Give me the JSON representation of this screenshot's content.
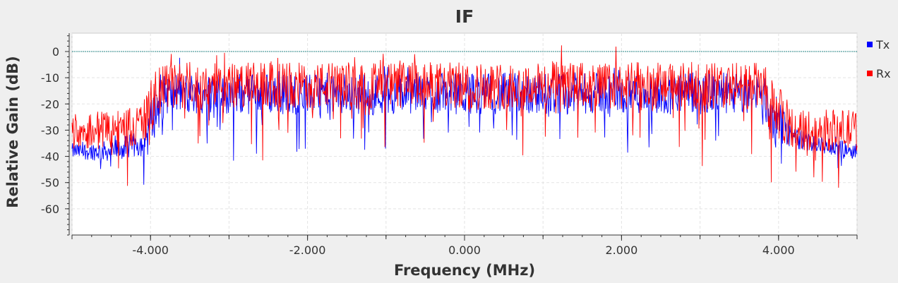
{
  "chart_data": {
    "type": "line",
    "title": "IF",
    "xlabel": "Frequency (MHz)",
    "ylabel": "Relative Gain (dB)",
    "xlim": [
      -5.0,
      5.0
    ],
    "ylim": [
      -70,
      7
    ],
    "x_ticks": [
      -4.0,
      -2.0,
      0.0,
      2.0,
      4.0
    ],
    "x_tick_labels": [
      "-4.000",
      "-2.000",
      "0.000",
      "2.000",
      "4.000"
    ],
    "y_ticks": [
      0,
      -10,
      -20,
      -30,
      -40,
      -50,
      -60
    ],
    "y_tick_labels": [
      "0",
      "-10",
      "-20",
      "-30",
      "-40",
      "-50",
      "-60"
    ],
    "grid": true,
    "legend_position": "right",
    "reference_line": {
      "y": 0,
      "color": "#2a8a8a",
      "style": "dotted"
    },
    "series": [
      {
        "name": "Tx",
        "color": "#0000ff",
        "envelope": {
          "x": [
            -5.0,
            -4.5,
            -4.1,
            -3.95,
            -3.8,
            -3.0,
            0.0,
            3.0,
            3.8,
            3.9,
            4.2,
            4.6,
            5.0
          ],
          "mid": [
            -38,
            -38,
            -35,
            -23,
            -16,
            -16,
            -16,
            -16,
            -16,
            -24,
            -33,
            -36,
            -38
          ],
          "spread": [
            3,
            4,
            5,
            10,
            8,
            8,
            8,
            8,
            8,
            10,
            4,
            3,
            3
          ]
        }
      },
      {
        "name": "Rx",
        "color": "#ff0000",
        "envelope": {
          "x": [
            -5.0,
            -4.5,
            -4.1,
            -3.95,
            -3.8,
            -3.0,
            0.0,
            3.0,
            3.8,
            3.9,
            4.2,
            4.6,
            5.0
          ],
          "mid": [
            -30,
            -30,
            -28,
            -18,
            -13,
            -13,
            -13,
            -13,
            -13,
            -20,
            -30,
            -30,
            -30
          ],
          "spread": [
            7,
            8,
            8,
            11,
            9,
            9,
            9,
            9,
            9,
            11,
            8,
            8,
            8
          ]
        }
      }
    ]
  }
}
